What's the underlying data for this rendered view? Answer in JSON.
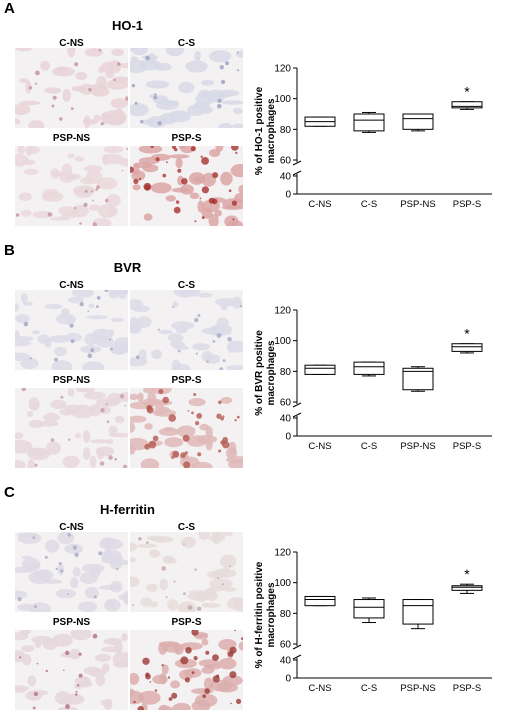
{
  "panels": [
    {
      "letter": "A",
      "title": "HO-1",
      "micrographs": [
        "C-NS",
        "C-S",
        "PSP-NS",
        "PSP-S"
      ],
      "stain_colors": [
        "#e7d3d8",
        "#d7d9e6",
        "#ead8dc",
        "#dca6a6"
      ],
      "spot_colors": [
        "#c58f9a",
        "#9aa0c0",
        "#c4949e",
        "#a8322f"
      ]
    },
    {
      "letter": "B",
      "title": "BVR",
      "micrographs": [
        "C-NS",
        "C-S",
        "PSP-NS",
        "PSP-S"
      ],
      "stain_colors": [
        "#dcdae6",
        "#dcdce8",
        "#e6d7dd",
        "#dfb8b8"
      ],
      "spot_colors": [
        "#a4a4c4",
        "#a8aac8",
        "#c49aa6",
        "#b4574e"
      ]
    },
    {
      "letter": "C",
      "title": "H-ferritin",
      "micrographs": [
        "C-NS",
        "C-S",
        "PSP-NS",
        "PSP-S"
      ],
      "stain_colors": [
        "#dddbe6",
        "#e6dcdc",
        "#e5d7dd",
        "#dcaeae"
      ],
      "spot_colors": [
        "#a9a9c4",
        "#c2a6a4",
        "#b06f7a",
        "#9e3a36"
      ]
    }
  ],
  "chart_data": [
    {
      "type": "box",
      "ylabel": "% of HO-1 positive macrophages",
      "categories": [
        "C-NS",
        "C-S",
        "PSP-NS",
        "PSP-S"
      ],
      "yticks": [
        0,
        40,
        60,
        80,
        100,
        120
      ],
      "axis_break": [
        40,
        60
      ],
      "boxes": [
        {
          "min": 82,
          "q1": 82,
          "median": 85,
          "q3": 88,
          "max": 88
        },
        {
          "min": 78,
          "q1": 79,
          "median": 86,
          "q3": 90,
          "max": 91
        },
        {
          "min": 79,
          "q1": 80,
          "median": 87,
          "q3": 90,
          "max": 90
        },
        {
          "min": 93,
          "q1": 94,
          "median": 95,
          "q3": 98,
          "max": 98
        }
      ],
      "significance": [
        "",
        "",
        "",
        "*"
      ]
    },
    {
      "type": "box",
      "ylabel": "% of BVR positive macrophages",
      "categories": [
        "C-NS",
        "C-S",
        "PSP-NS",
        "PSP-S"
      ],
      "yticks": [
        0,
        40,
        60,
        80,
        100,
        120
      ],
      "axis_break": [
        40,
        60
      ],
      "boxes": [
        {
          "min": 78,
          "q1": 78,
          "median": 82,
          "q3": 84,
          "max": 84
        },
        {
          "min": 77,
          "q1": 78,
          "median": 83,
          "q3": 86,
          "max": 86
        },
        {
          "min": 67,
          "q1": 68,
          "median": 80,
          "q3": 82,
          "max": 83
        },
        {
          "min": 92,
          "q1": 93,
          "median": 96,
          "q3": 98,
          "max": 98
        }
      ],
      "significance": [
        "",
        "",
        "",
        "*"
      ]
    },
    {
      "type": "box",
      "ylabel": "% of H-ferritin positive macrophages",
      "categories": [
        "C-NS",
        "C-S",
        "PSP-NS",
        "PSP-S"
      ],
      "yticks": [
        0,
        40,
        60,
        80,
        100,
        120
      ],
      "axis_break": [
        40,
        60
      ],
      "boxes": [
        {
          "min": 85,
          "q1": 85,
          "median": 89,
          "q3": 91,
          "max": 91
        },
        {
          "min": 74,
          "q1": 77,
          "median": 84,
          "q3": 89,
          "max": 90
        },
        {
          "min": 70,
          "q1": 73,
          "median": 85,
          "q3": 89,
          "max": 89
        },
        {
          "min": 93,
          "q1": 95,
          "median": 97,
          "q3": 98,
          "max": 99
        }
      ],
      "significance": [
        "",
        "",
        "",
        "*"
      ]
    }
  ]
}
